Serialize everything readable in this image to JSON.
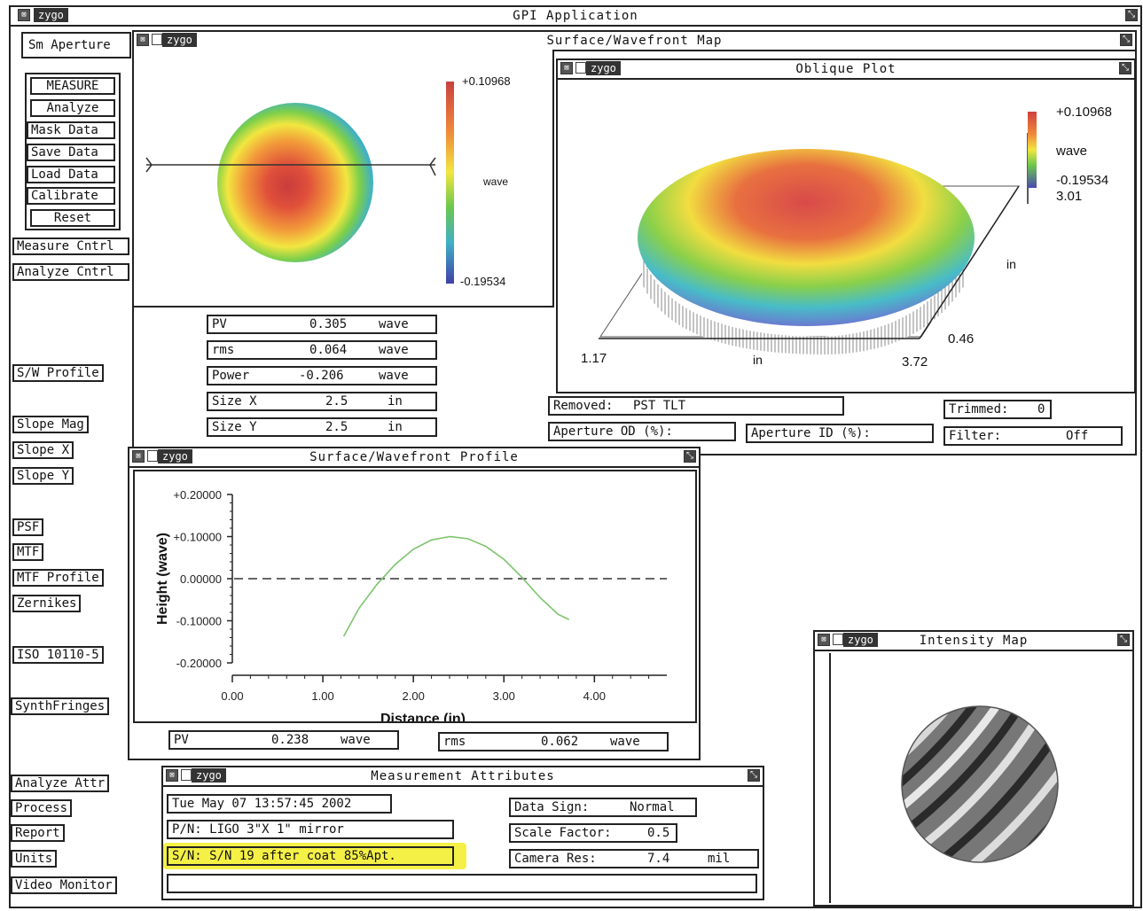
{
  "app": {
    "logo": "zygo",
    "title": "GPI Application"
  },
  "aperture_label": "Sm Aperture",
  "measure_buttons": [
    "MEASURE",
    "Analyze",
    "Mask Data",
    "Save Data",
    "Load Data",
    "Calibrate",
    "Reset"
  ],
  "sidebar": {
    "measure_cntrl": "Measure Cntrl",
    "analyze_cntrl": "Analyze Cntrl",
    "sw_profile": "S/W Profile",
    "slope_mag": "Slope Mag",
    "slope_x": "Slope X",
    "slope_y": "Slope Y",
    "psf": "PSF",
    "mtf": "MTF",
    "mtf_profile": "MTF Profile",
    "zernikes": "Zernikes",
    "iso": "ISO 10110-5",
    "synth": "SynthFringes",
    "analyze_attr": "Analyze Attr",
    "process": "Process",
    "report": "Report",
    "units": "Units",
    "video_monitor": "Video Monitor"
  },
  "surface_map": {
    "logo": "zygo",
    "title": "Surface/Wavefront Map",
    "scale_max": "+0.10968",
    "scale_unit": "wave",
    "scale_min": "-0.19534"
  },
  "stats": [
    {
      "label": "PV",
      "value": "0.305",
      "unit": "wave"
    },
    {
      "label": "rms",
      "value": "0.064",
      "unit": "wave"
    },
    {
      "label": "Power",
      "value": "-0.206",
      "unit": "wave"
    },
    {
      "label": "Size X",
      "value": "2.5",
      "unit": "in"
    },
    {
      "label": "Size Y",
      "value": "2.5",
      "unit": "in"
    }
  ],
  "oblique": {
    "logo": "zygo",
    "title": "Oblique Plot",
    "scale_max": "+0.10968",
    "scale_unit": "wave",
    "scale_min": "-0.19534",
    "z_top": "3.01",
    "y_unit": "in",
    "y_min": "0.46",
    "x_min": "1.17",
    "x_unit": "in",
    "x_max": "3.72"
  },
  "removed": {
    "label": "Removed:",
    "value": "PST TLT"
  },
  "trimmed": {
    "label": "Trimmed:",
    "value": "0"
  },
  "aperture_od": {
    "label": "Aperture OD (%):"
  },
  "aperture_id": {
    "label": "Aperture ID (%):"
  },
  "filter": {
    "label": "Filter:",
    "value": "Off"
  },
  "profile": {
    "logo": "zygo",
    "title": "Surface/Wavefront Profile",
    "pv": {
      "label": "PV",
      "value": "0.238",
      "unit": "wave"
    },
    "rms": {
      "label": "rms",
      "value": "0.062",
      "unit": "wave"
    }
  },
  "chart_data": {
    "type": "line",
    "title": "",
    "xlabel": "Distance (in)",
    "ylabel": "Height (wave)",
    "xlim": [
      0,
      4.8
    ],
    "ylim": [
      -0.2,
      0.2
    ],
    "x_ticks": [
      "0.00",
      "1.00",
      "2.00",
      "3.00",
      "4.00"
    ],
    "y_ticks": [
      "+0.20000",
      "+0.10000",
      "0.00000",
      "-0.10000",
      "-0.20000"
    ],
    "x": [
      1.23,
      1.4,
      1.6,
      1.8,
      2.0,
      2.2,
      2.4,
      2.6,
      2.8,
      3.0,
      3.2,
      3.4,
      3.6,
      3.72
    ],
    "y": [
      -0.137,
      -0.07,
      -0.013,
      0.034,
      0.07,
      0.092,
      0.1,
      0.095,
      0.077,
      0.046,
      0.003,
      -0.045,
      -0.085,
      -0.097
    ],
    "reference_y": 0,
    "line_color": "#7cc46c",
    "grid": false
  },
  "measurement": {
    "logo": "zygo",
    "title": "Measurement Attributes",
    "date": "Tue May 07 13:57:45 2002",
    "pn": "P/N:  LIGO 3\"X 1\" mirror",
    "sn": "S/N:  S/N 19 after coat 85%Apt.",
    "data_sign_label": "Data Sign:",
    "data_sign": "Normal",
    "scale_label": "Scale Factor:",
    "scale": "0.5",
    "camera_label": "Camera Res:",
    "camera": "7.4",
    "camera_unit": "mil"
  },
  "intensity": {
    "logo": "zygo",
    "title": "Intensity Map"
  },
  "colors": {
    "highlight": "#f4f046",
    "curve": "#7cc46c"
  }
}
